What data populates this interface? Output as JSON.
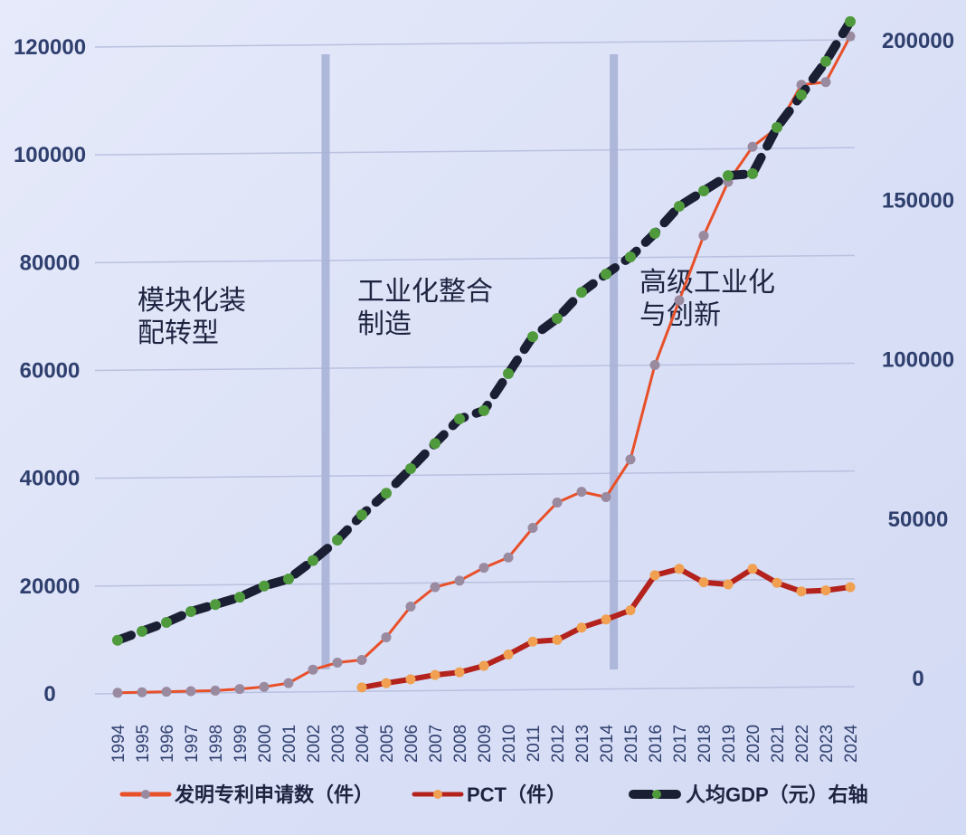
{
  "chart_data": {
    "type": "line",
    "x": [
      1994,
      1995,
      1996,
      1997,
      1998,
      1999,
      2000,
      2001,
      2002,
      2003,
      2004,
      2005,
      2006,
      2007,
      2008,
      2009,
      2010,
      2011,
      2012,
      2013,
      2014,
      2015,
      2016,
      2017,
      2018,
      2019,
      2020,
      2021,
      2022,
      2023,
      2024
    ],
    "series": [
      {
        "name": "发明专利申请数（件）",
        "axis": "left",
        "color": "#e8502a",
        "marker_color": "#9a8aa0",
        "values": [
          200,
          300,
          400,
          500,
          600,
          900,
          1300,
          2000,
          4500,
          5800,
          6300,
          10500,
          16200,
          19800,
          21000,
          23400,
          25300,
          30800,
          35500,
          37500,
          36500,
          43500,
          61000,
          73000,
          85000,
          95000,
          101500,
          105000,
          113000,
          113500,
          122000
        ]
      },
      {
        "name": "PCT（件）",
        "axis": "left",
        "color": "#b3221c",
        "marker_color": "#f0a050",
        "values": [
          null,
          null,
          null,
          null,
          null,
          null,
          null,
          null,
          null,
          null,
          1200,
          2000,
          2700,
          3500,
          4000,
          5200,
          7300,
          9700,
          10000,
          12300,
          13800,
          15500,
          22000,
          23200,
          20700,
          20300,
          23200,
          20600,
          19000,
          19200,
          19800
        ]
      },
      {
        "name": "人均GDP（元）右轴",
        "axis": "right",
        "color": "#1a1f33",
        "marker_color": "#4f9a3c",
        "dashed": true,
        "values": [
          12000,
          14800,
          17600,
          21000,
          23200,
          25500,
          29000,
          31200,
          37000,
          43400,
          51300,
          58100,
          65800,
          73700,
          81400,
          84000,
          95600,
          107200,
          112900,
          121100,
          126800,
          132200,
          139600,
          148100,
          152900,
          157700,
          158300,
          172800,
          183000,
          193500,
          206000
        ]
      }
    ],
    "left_axis": {
      "ylim": [
        0,
        120000
      ],
      "ticks": [
        "0",
        "20000",
        "40000",
        "60000",
        "80000",
        "100000",
        "120000"
      ]
    },
    "right_axis": {
      "ylim": [
        0,
        200000
      ],
      "ticks": [
        "0",
        "50000",
        "100000",
        "150000",
        "200000"
      ]
    },
    "x_tick_labels": [
      "1994",
      "1995",
      "1996",
      "1997",
      "1998",
      "1999",
      "2000",
      "2001",
      "2002",
      "2003",
      "2004",
      "2005",
      "2006",
      "2007",
      "2008",
      "2009",
      "2010",
      "2011",
      "2012",
      "2013",
      "2014",
      "2015",
      "2016",
      "2017",
      "2018",
      "2019",
      "2020",
      "2021",
      "2022",
      "2023",
      "2024"
    ],
    "phase_dividers": [
      2002.5,
      2014.3
    ],
    "annotations": [
      {
        "lines": [
          "模块化装",
          "配转型"
        ]
      },
      {
        "lines": [
          "工业化整合",
          "制造"
        ]
      },
      {
        "lines": [
          "高级工业化",
          "与创新"
        ]
      }
    ],
    "grid": true,
    "legend_position": "bottom"
  }
}
